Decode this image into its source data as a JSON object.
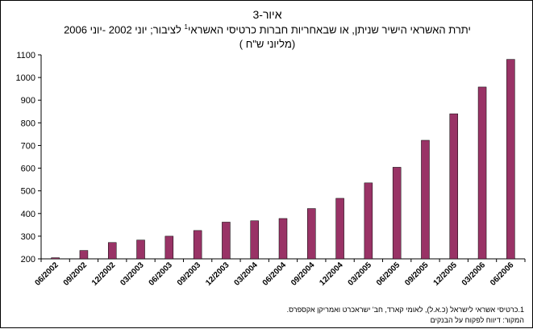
{
  "title": {
    "line1": "איור-3",
    "line2_before_sup": "יתרת האשראי הישיר שניתן, או שבאחריות חברות כרטיסי האשראי",
    "line2_sup": "1",
    "line2_after_sup": " לציבור; יוני 2002 -יוני 2006",
    "line3": "(מליוני ש\"ח )"
  },
  "footnotes": {
    "note1": "1.כרטיסי אשראי לישראל (כ.א.ל), לאומי קארד, חב' ישראכרט ואמריקן אקספרס.",
    "source": "המקור: דיווח לפקוח על הבנקים"
  },
  "colors": {
    "bar": "#993366",
    "bar_edge": "#000000",
    "axis": "#000000"
  },
  "chart_data": {
    "type": "bar",
    "categories": [
      "06/2002",
      "09/2002",
      "12/2002",
      "03/2003",
      "06/2003",
      "09/2003",
      "12/2003",
      "03/2004",
      "06/2004",
      "09/2004",
      "12/2004",
      "03/2005",
      "06/2005",
      "09/2005",
      "12/2005",
      "03/2006",
      "06/2006"
    ],
    "values": [
      205,
      237,
      272,
      283,
      300,
      325,
      362,
      368,
      378,
      422,
      467,
      535,
      604,
      723,
      840,
      958,
      1080
    ],
    "ylim": [
      200,
      1100
    ],
    "yticks": [
      200,
      300,
      400,
      500,
      600,
      700,
      800,
      900,
      1000,
      1100
    ],
    "xlabel": "",
    "ylabel": "",
    "grid": false,
    "legend": false
  }
}
